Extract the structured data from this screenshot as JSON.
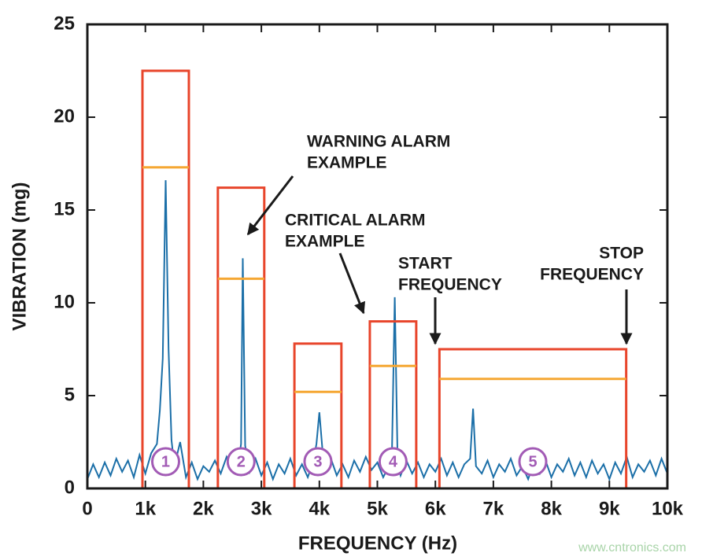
{
  "chart_data": {
    "type": "line",
    "x_label": "FREQUENCY (Hz)",
    "y_label": "VIBRATION (mg)",
    "xlim": [
      0,
      10000
    ],
    "ylim": [
      0,
      25
    ],
    "xticks": [
      0,
      {
        "value": 1000,
        "label": "1k"
      },
      {
        "value": 2000,
        "label": "2k"
      },
      {
        "value": 3000,
        "label": "3k"
      },
      {
        "value": 4000,
        "label": "4k"
      },
      {
        "value": 5000,
        "label": "5k"
      },
      {
        "value": 6000,
        "label": "6k"
      },
      {
        "value": 7000,
        "label": "7k"
      },
      {
        "value": 8000,
        "label": "8k"
      },
      {
        "value": 9000,
        "label": "9k"
      },
      {
        "value": 10000,
        "label": "10k"
      }
    ],
    "yticks": [
      0,
      5,
      10,
      15,
      20,
      25
    ],
    "grid": false,
    "x": [
      0,
      100,
      200,
      300,
      400,
      500,
      600,
      700,
      800,
      900,
      1000,
      1100,
      1200,
      1250,
      1300,
      1350,
      1400,
      1450,
      1500,
      1600,
      1700,
      1800,
      1900,
      2000,
      2100,
      2200,
      2300,
      2400,
      2500,
      2600,
      2650,
      2680,
      2720,
      2800,
      2900,
      3000,
      3100,
      3200,
      3300,
      3400,
      3500,
      3600,
      3700,
      3800,
      3900,
      3950,
      4000,
      4050,
      4100,
      4200,
      4300,
      4400,
      4500,
      4600,
      4700,
      4800,
      4900,
      5000,
      5100,
      5200,
      5250,
      5300,
      5350,
      5400,
      5500,
      5600,
      5700,
      5800,
      5900,
      6000,
      6100,
      6200,
      6300,
      6400,
      6500,
      6600,
      6650,
      6700,
      6800,
      6900,
      7000,
      7100,
      7200,
      7300,
      7400,
      7500,
      7600,
      7700,
      7800,
      7900,
      8000,
      8100,
      8200,
      8300,
      8400,
      8500,
      8600,
      8700,
      8800,
      8900,
      9000,
      9100,
      9200,
      9300,
      9400,
      9500,
      9600,
      9700,
      9800,
      9900,
      10000
    ],
    "series": [
      {
        "color": "#1b6fa8",
        "values": [
          0.5,
          1.3,
          0.6,
          1.4,
          0.7,
          1.6,
          0.9,
          1.5,
          0.6,
          1.8,
          0.8,
          1.9,
          2.4,
          4.2,
          7.0,
          16.6,
          7.5,
          2.6,
          1.2,
          2.5,
          0.6,
          1.4,
          0.5,
          1.2,
          0.9,
          1.5,
          0.8,
          1.7,
          1.0,
          1.3,
          2.4,
          12.4,
          2.3,
          0.9,
          1.6,
          0.7,
          1.4,
          0.5,
          1.3,
          0.8,
          1.6,
          0.7,
          1.3,
          0.6,
          1.5,
          2.4,
          4.1,
          2.2,
          1.0,
          1.6,
          0.7,
          1.3,
          0.6,
          1.5,
          0.9,
          1.7,
          1.0,
          1.4,
          0.6,
          1.2,
          1.6,
          10.3,
          1.3,
          0.7,
          1.5,
          0.8,
          1.4,
          0.6,
          1.3,
          0.9,
          1.6,
          0.7,
          1.4,
          0.6,
          1.3,
          1.6,
          4.3,
          1.2,
          0.8,
          1.5,
          0.6,
          1.3,
          0.9,
          1.6,
          0.7,
          1.2,
          0.5,
          1.4,
          0.8,
          1.5,
          0.6,
          1.3,
          0.9,
          1.6,
          0.7,
          1.4,
          0.6,
          1.5,
          0.8,
          1.3,
          0.5,
          1.4,
          0.8,
          1.7,
          0.6,
          1.3,
          0.9,
          1.5,
          0.7,
          1.6,
          0.8
        ]
      }
    ],
    "critical_color": "#e8452b",
    "warning_color": "#f5a733",
    "band_label_color": "#a25bb5",
    "alarm_bands": [
      {
        "label": "1",
        "start": 950,
        "stop": 1750,
        "critical": 22.5,
        "warning": 17.3
      },
      {
        "label": "2",
        "start": 2250,
        "stop": 3050,
        "critical": 16.2,
        "warning": 11.3
      },
      {
        "label": "3",
        "start": 3570,
        "stop": 4380,
        "critical": 7.8,
        "warning": 5.2
      },
      {
        "label": "4",
        "start": 4870,
        "stop": 5670,
        "critical": 9.0,
        "warning": 6.6
      },
      {
        "label": "5",
        "start": 6070,
        "stop": 9290,
        "critical": 7.5,
        "warning": 5.9
      }
    ],
    "annotations": [
      {
        "lines": [
          "WARNING ALARM",
          "EXAMPLE"
        ]
      },
      {
        "lines": [
          "CRITICAL ALARM",
          "EXAMPLE"
        ]
      },
      {
        "lines": [
          "START",
          "FREQUENCY"
        ]
      },
      {
        "lines": [
          "STOP",
          "FREQUENCY"
        ]
      }
    ]
  },
  "watermark": "www.cntronics.com"
}
